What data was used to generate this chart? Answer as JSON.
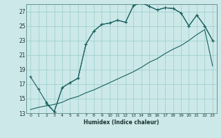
{
  "xlabel": "Humidex (Indice chaleur)",
  "bg_color": "#cce8e8",
  "grid_color": "#99cccc",
  "line_color": "#1a6060",
  "xlim": [
    -0.5,
    23.5
  ],
  "ylim": [
    13,
    28
  ],
  "xticks": [
    0,
    1,
    2,
    3,
    4,
    5,
    6,
    7,
    8,
    9,
    10,
    11,
    12,
    13,
    14,
    15,
    16,
    17,
    18,
    19,
    20,
    21,
    22,
    23
  ],
  "yticks": [
    13,
    15,
    17,
    19,
    21,
    23,
    25,
    27
  ],
  "line1_x": [
    0,
    1,
    2,
    3,
    4,
    5,
    6,
    7,
    8,
    9,
    10,
    11,
    12,
    13,
    14,
    15,
    16,
    17,
    18,
    19,
    20,
    21,
    22,
    23
  ],
  "line1_y": [
    18.0,
    16.3,
    14.5,
    13.2,
    16.5,
    17.2,
    17.8,
    22.5,
    24.3,
    25.2,
    25.4,
    25.8,
    25.5,
    27.8,
    28.2,
    27.7,
    27.2,
    27.5,
    27.4,
    26.8,
    25.0,
    26.5,
    25.0,
    23.0
  ],
  "line2_x": [
    2,
    3,
    4,
    5,
    6,
    7,
    8,
    9,
    10,
    11,
    12,
    13,
    14,
    15,
    16,
    17,
    18,
    19,
    20,
    21,
    22,
    23
  ],
  "line2_y": [
    14.3,
    13.2,
    16.5,
    17.2,
    17.8,
    22.5,
    24.3,
    25.2,
    25.4,
    25.8,
    25.5,
    27.8,
    28.2,
    27.7,
    27.2,
    27.5,
    27.4,
    26.8,
    25.0,
    26.5,
    25.0,
    23.0
  ],
  "line3_x": [
    0,
    1,
    2,
    3,
    4,
    5,
    6,
    7,
    8,
    9,
    10,
    11,
    12,
    13,
    14,
    15,
    16,
    17,
    18,
    19,
    20,
    21,
    22,
    23
  ],
  "line3_y": [
    13.5,
    13.8,
    14.0,
    14.2,
    14.5,
    15.0,
    15.3,
    15.8,
    16.2,
    16.7,
    17.2,
    17.7,
    18.2,
    18.7,
    19.3,
    20.0,
    20.5,
    21.2,
    21.8,
    22.3,
    23.0,
    23.8,
    24.5,
    19.5
  ]
}
